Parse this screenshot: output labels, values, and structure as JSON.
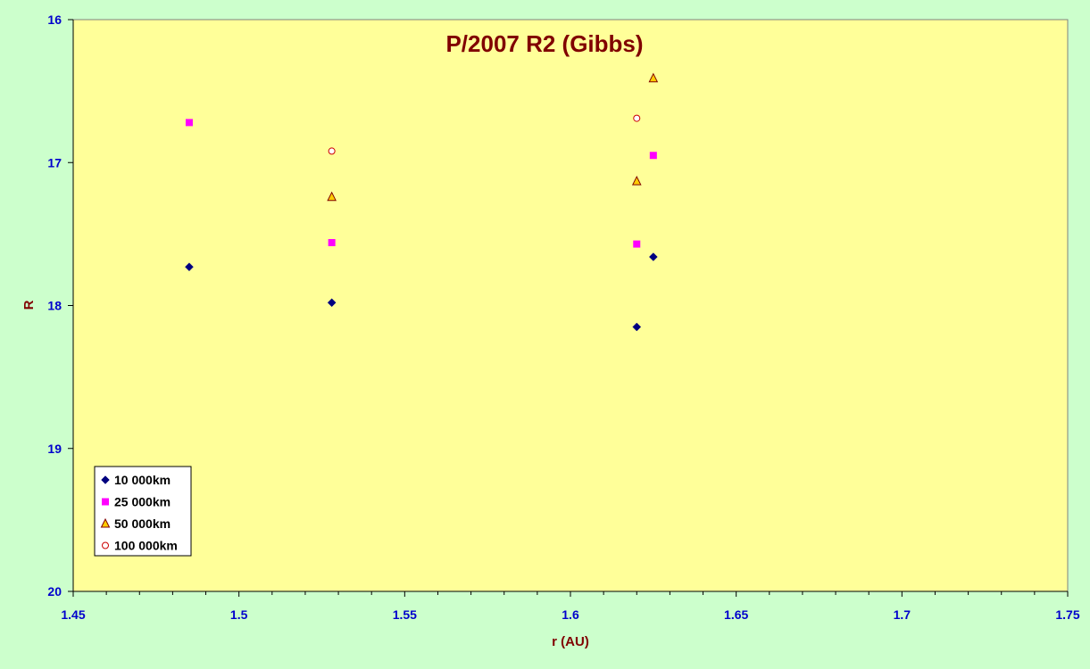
{
  "colors": {
    "chart_background": "#ccffcc",
    "plot_background": "#ffff99",
    "axis_text": "#0000cc",
    "title_text": "#800000"
  },
  "chart_data": {
    "type": "scatter",
    "title": "P/2007 R2 (Gibbs)",
    "xlabel": "r (AU)",
    "ylabel": "R",
    "xlim": [
      1.45,
      1.75
    ],
    "ylim": [
      16,
      20
    ],
    "y_reversed": true,
    "x_ticks": [
      "1.45",
      "1.5",
      "1.55",
      "1.6",
      "1.65",
      "1.7",
      "1.75"
    ],
    "y_ticks": [
      "16",
      "17",
      "18",
      "19",
      "20"
    ],
    "grid": false,
    "legend_position": "bottom-left",
    "series": [
      {
        "name": "10 000km",
        "marker": "diamond",
        "color": "#000080",
        "points": [
          [
            1.485,
            17.73
          ],
          [
            1.528,
            17.98
          ],
          [
            1.62,
            18.15
          ],
          [
            1.625,
            17.66
          ]
        ]
      },
      {
        "name": "25 000km",
        "marker": "square",
        "color": "#ff00ff",
        "points": [
          [
            1.485,
            16.72
          ],
          [
            1.528,
            17.56
          ],
          [
            1.62,
            17.57
          ],
          [
            1.625,
            16.95
          ]
        ]
      },
      {
        "name": "50 000km",
        "marker": "triangle",
        "color": "#ffcc00",
        "points": [
          [
            1.528,
            17.24
          ],
          [
            1.62,
            17.13
          ],
          [
            1.625,
            16.41
          ]
        ]
      },
      {
        "name": "100 000km",
        "marker": "circle",
        "color": "#ffffff",
        "points": [
          [
            1.528,
            16.92
          ],
          [
            1.62,
            16.69
          ]
        ]
      }
    ]
  }
}
